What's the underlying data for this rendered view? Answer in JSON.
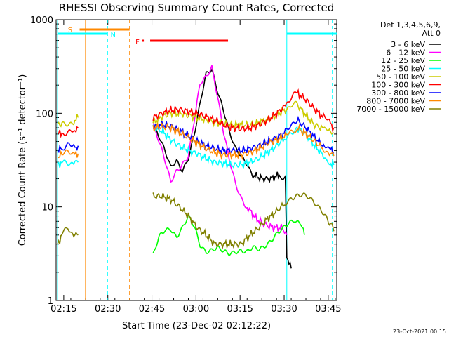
{
  "chart_data": {
    "type": "line",
    "title": "RHESSI Observing Summary Count Rates, Corrected",
    "xlabel": "Start Time (23-Dec-02 02:12:22)",
    "ylabel": "Corrected Count Rate (s⁻¹ detector⁻¹)",
    "y_scale": "log",
    "ylim": [
      1,
      1000
    ],
    "y_ticks": [
      "1",
      "10",
      "100",
      "1000"
    ],
    "xlim_minutes_after_0212": [
      0,
      38
    ],
    "x_ticks": [
      "02:15",
      "02:30",
      "02:45",
      "03:00",
      "03:15",
      "03:30",
      "03:45"
    ],
    "x_tick_minutes": [
      2.6,
      17.6,
      32.6,
      47.6,
      62.6,
      77.6,
      92.6
    ],
    "legend": {
      "placement": "right",
      "header": [
        "Det 1,3,4,5,6,9,",
        "Att 0"
      ],
      "entries": [
        {
          "label": "3 - 6 keV",
          "color": "#000000"
        },
        {
          "label": "6 - 12 keV",
          "color": "#ff00ff"
        },
        {
          "label": "12 - 25 keV",
          "color": "#00ff00"
        },
        {
          "label": "25 - 50 keV",
          "color": "#00ffff"
        },
        {
          "label": "50 - 100 keV",
          "color": "#cccc00"
        },
        {
          "label": "100 - 300 keV",
          "color": "#ff0000"
        },
        {
          "label": "300 - 800 keV",
          "color": "#0000ff"
        },
        {
          "label": "800 - 7000 keV",
          "color": "#ff8800"
        },
        {
          "label": "7000 - 15000 keV",
          "color": "#808000"
        }
      ]
    },
    "flags": [
      {
        "label": "S",
        "color": "#ff8800"
      },
      {
        "label": "N",
        "color": "#00ffff"
      },
      {
        "label": "F",
        "color": "#ff0000"
      }
    ],
    "series": [
      {
        "name": "3 - 6 keV",
        "color": "#000000",
        "segments": [
          [
            [
              33,
              80
            ],
            [
              35,
              60
            ],
            [
              37,
              40
            ],
            [
              39,
              25
            ],
            [
              41,
              30
            ],
            [
              43,
              25
            ],
            [
              45,
              35
            ],
            [
              47,
              60
            ],
            [
              49,
              120
            ],
            [
              51,
              250
            ],
            [
              53,
              300
            ],
            [
              55,
              180
            ],
            [
              57,
              110
            ],
            [
              59,
              60
            ],
            [
              61,
              40
            ],
            [
              63,
              35
            ],
            [
              65,
              30
            ],
            [
              67,
              22
            ],
            [
              70,
              20
            ],
            [
              73,
              20
            ],
            [
              76,
              22
            ],
            [
              78,
              21
            ],
            [
              78.5,
              3
            ],
            [
              80,
              2.2
            ]
          ]
        ]
      },
      {
        "name": "6 - 12 keV",
        "color": "#ff00ff",
        "segments": [
          [
            [
              33,
              80
            ],
            [
              35,
              50
            ],
            [
              37,
              30
            ],
            [
              39,
              18
            ],
            [
              41,
              25
            ],
            [
              43,
              30
            ],
            [
              45,
              35
            ],
            [
              47,
              80
            ],
            [
              49,
              200
            ],
            [
              51,
              250
            ],
            [
              53,
              330
            ],
            [
              55,
              150
            ],
            [
              57,
              60
            ],
            [
              59,
              30
            ],
            [
              61,
              18
            ],
            [
              63,
              13
            ],
            [
              65,
              10
            ],
            [
              68,
              7.5
            ],
            [
              71,
              6.5
            ],
            [
              74,
              6
            ],
            [
              77,
              6
            ],
            [
              78.5,
              5
            ]
          ]
        ]
      },
      {
        "name": "12 - 25 keV",
        "color": "#00ff00",
        "segments": [
          [
            [
              33,
              3
            ],
            [
              35,
              4.5
            ],
            [
              37,
              5.5
            ],
            [
              39,
              6
            ],
            [
              41,
              5
            ],
            [
              43,
              6
            ],
            [
              45,
              7.5
            ],
            [
              47,
              6
            ],
            [
              49,
              4
            ],
            [
              51,
              3.5
            ],
            [
              53,
              3.5
            ],
            [
              55,
              3.5
            ],
            [
              57,
              3.2
            ],
            [
              59,
              3.2
            ],
            [
              61,
              3.5
            ],
            [
              63,
              3.5
            ],
            [
              65,
              3.2
            ],
            [
              67,
              3.5
            ],
            [
              69,
              3.5
            ],
            [
              71,
              4
            ],
            [
              73,
              4.5
            ],
            [
              75,
              5
            ],
            [
              77,
              5.5
            ],
            [
              79,
              6.5
            ],
            [
              81,
              7.5
            ],
            [
              83,
              7
            ],
            [
              84.5,
              5
            ]
          ]
        ]
      },
      {
        "name": "25 - 50 keV",
        "color": "#00ffff",
        "segments": [
          [
            [
              0.5,
              29
            ],
            [
              2,
              29
            ],
            [
              4,
              29
            ],
            [
              6,
              30
            ],
            [
              7.5,
              30
            ]
          ],
          [
            [
              33,
              70
            ],
            [
              36,
              65
            ],
            [
              39,
              52
            ],
            [
              42,
              45
            ],
            [
              45,
              40
            ],
            [
              48,
              37
            ],
            [
              51,
              33
            ],
            [
              54,
              30
            ],
            [
              57,
              29
            ],
            [
              60,
              28
            ],
            [
              63,
              28
            ],
            [
              66,
              30
            ],
            [
              69,
              33
            ],
            [
              72,
              38
            ],
            [
              75,
              45
            ],
            [
              78,
              55
            ],
            [
              80,
              65
            ],
            [
              82,
              70
            ],
            [
              85,
              60
            ],
            [
              88,
              45
            ],
            [
              91,
              35
            ],
            [
              93,
              30
            ],
            [
              94.5,
              28
            ]
          ]
        ]
      },
      {
        "name": "50 - 100 keV",
        "color": "#cccc00",
        "segments": [
          [
            [
              0.5,
              75
            ],
            [
              2,
              78
            ],
            [
              4,
              80
            ],
            [
              6,
              82
            ],
            [
              7.5,
              90
            ]
          ],
          [
            [
              33,
              80
            ],
            [
              36,
              92
            ],
            [
              39,
              100
            ],
            [
              42,
              100
            ],
            [
              45,
              95
            ],
            [
              48,
              90
            ],
            [
              51,
              85
            ],
            [
              54,
              80
            ],
            [
              57,
              78
            ],
            [
              60,
              75
            ],
            [
              63,
              75
            ],
            [
              66,
              75
            ],
            [
              69,
              80
            ],
            [
              72,
              85
            ],
            [
              75,
              95
            ],
            [
              78,
              110
            ],
            [
              80,
              125
            ],
            [
              82,
              125
            ],
            [
              85,
              95
            ],
            [
              88,
              75
            ],
            [
              91,
              68
            ],
            [
              93,
              65
            ],
            [
              94.5,
              62
            ]
          ]
        ]
      },
      {
        "name": "100 - 300 keV",
        "color": "#ff0000",
        "segments": [
          [
            [
              0.5,
              60
            ],
            [
              2,
              62
            ],
            [
              4,
              65
            ],
            [
              6,
              65
            ],
            [
              7.5,
              70
            ]
          ],
          [
            [
              33,
              90
            ],
            [
              36,
              100
            ],
            [
              39,
              108
            ],
            [
              42,
              110
            ],
            [
              45,
              105
            ],
            [
              48,
              100
            ],
            [
              51,
              92
            ],
            [
              54,
              85
            ],
            [
              57,
              75
            ],
            [
              60,
              70
            ],
            [
              63,
              68
            ],
            [
              66,
              70
            ],
            [
              69,
              75
            ],
            [
              72,
              85
            ],
            [
              75,
              100
            ],
            [
              78,
              120
            ],
            [
              80,
              140
            ],
            [
              82,
              165
            ],
            [
              85,
              140
            ],
            [
              88,
              110
            ],
            [
              91,
              90
            ],
            [
              93,
              80
            ],
            [
              94.5,
              70
            ]
          ]
        ]
      },
      {
        "name": "300 - 800 keV",
        "color": "#0000ff",
        "segments": [
          [
            [
              0.5,
              40
            ],
            [
              2,
              42
            ],
            [
              4,
              45
            ],
            [
              6,
              43
            ],
            [
              7.5,
              45
            ]
          ],
          [
            [
              33,
              72
            ],
            [
              36,
              75
            ],
            [
              39,
              73
            ],
            [
              42,
              65
            ],
            [
              45,
              58
            ],
            [
              48,
              50
            ],
            [
              51,
              45
            ],
            [
              54,
              42
            ],
            [
              57,
              40
            ],
            [
              60,
              40
            ],
            [
              63,
              40
            ],
            [
              66,
              42
            ],
            [
              69,
              45
            ],
            [
              72,
              50
            ],
            [
              75,
              55
            ],
            [
              78,
              62
            ],
            [
              80,
              70
            ],
            [
              82,
              85
            ],
            [
              85,
              70
            ],
            [
              88,
              55
            ],
            [
              91,
              45
            ],
            [
              93,
              42
            ],
            [
              94.5,
              38
            ]
          ]
        ]
      },
      {
        "name": "800 - 7000 keV",
        "color": "#ff8800",
        "segments": [
          [
            [
              0.5,
              35
            ],
            [
              2,
              36
            ],
            [
              4,
              37
            ],
            [
              6,
              36
            ],
            [
              7.5,
              37
            ]
          ],
          [
            [
              33,
              70
            ],
            [
              36,
              72
            ],
            [
              39,
              70
            ],
            [
              42,
              62
            ],
            [
              45,
              55
            ],
            [
              48,
              48
            ],
            [
              51,
              42
            ],
            [
              54,
              38
            ],
            [
              57,
              36
            ],
            [
              60,
              36
            ],
            [
              63,
              36
            ],
            [
              66,
              38
            ],
            [
              69,
              42
            ],
            [
              72,
              48
            ],
            [
              75,
              52
            ],
            [
              78,
              58
            ],
            [
              80,
              64
            ],
            [
              82,
              70
            ],
            [
              85,
              60
            ],
            [
              88,
              50
            ],
            [
              91,
              42
            ],
            [
              93,
              38
            ],
            [
              94.5,
              35
            ]
          ]
        ]
      },
      {
        "name": "7000 - 15000 keV",
        "color": "#808000",
        "segments": [
          [
            [
              0.5,
              4
            ],
            [
              2,
              5
            ],
            [
              4,
              6
            ],
            [
              6,
              5
            ],
            [
              7.5,
              5
            ]
          ],
          [
            [
              33,
              13
            ],
            [
              36,
              13
            ],
            [
              39,
              12
            ],
            [
              42,
              10
            ],
            [
              45,
              8
            ],
            [
              48,
              6
            ],
            [
              51,
              5
            ],
            [
              54,
              4
            ],
            [
              57,
              4
            ],
            [
              60,
              4
            ],
            [
              63,
              4
            ],
            [
              66,
              5
            ],
            [
              69,
              6
            ],
            [
              72,
              7.5
            ],
            [
              75,
              9
            ],
            [
              78,
              11
            ],
            [
              80,
              13
            ],
            [
              82,
              13.5
            ],
            [
              84,
              13
            ],
            [
              86,
              12
            ],
            [
              88,
              11
            ],
            [
              90,
              10
            ],
            [
              92,
              8
            ],
            [
              94.5,
              5.5
            ]
          ]
        ]
      }
    ]
  },
  "footer": {
    "date_stamp": "23-Oct-2021 00:15"
  }
}
